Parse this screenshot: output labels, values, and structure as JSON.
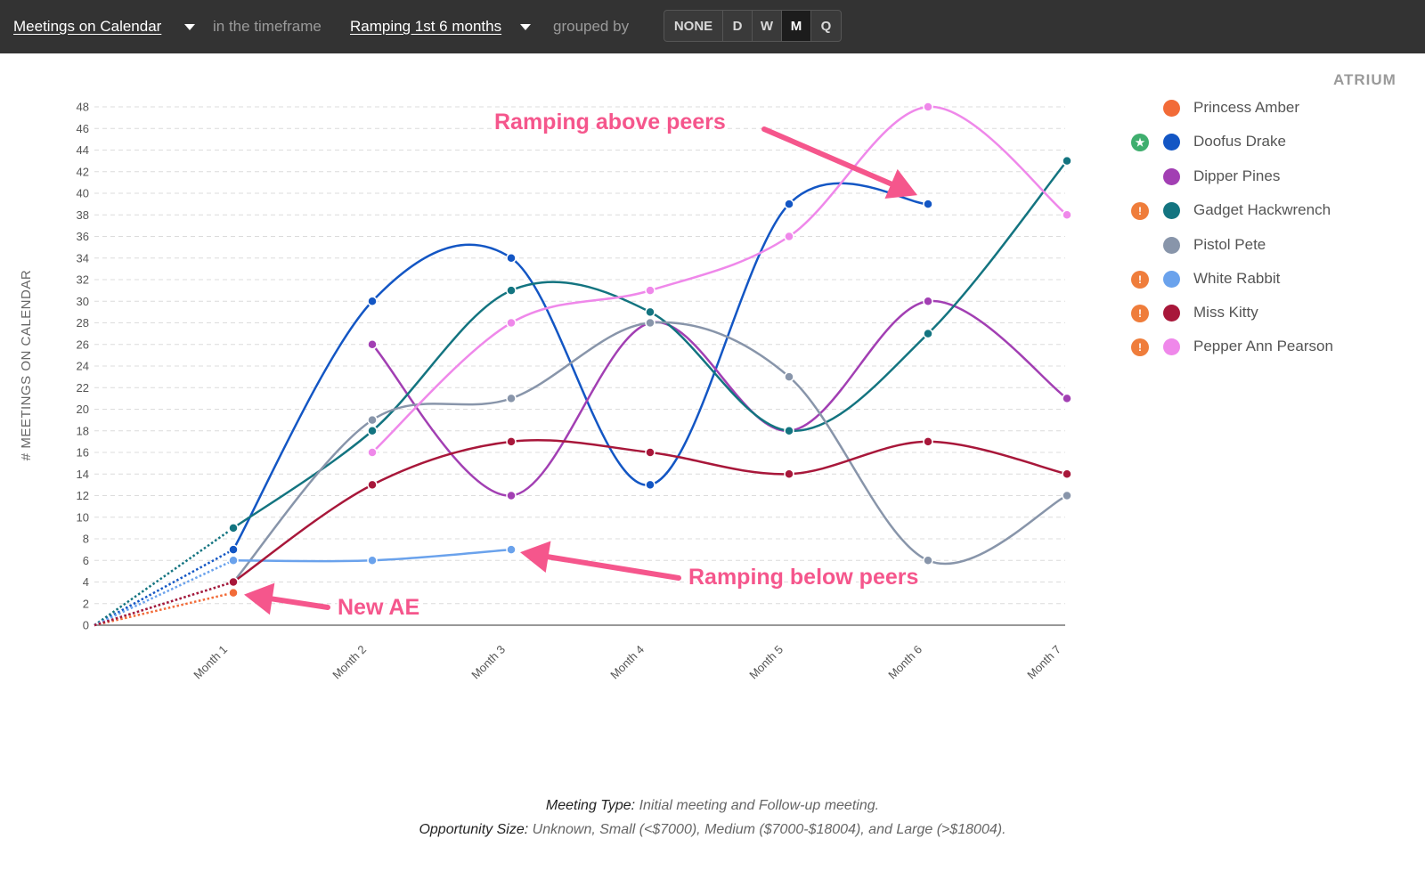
{
  "toolbar": {
    "metric": "Meetings on Calendar",
    "timeframe_text": "in the timeframe",
    "timeframe": "Ramping 1st 6 months",
    "grouped_text": "grouped by",
    "groups": [
      "NONE",
      "D",
      "W",
      "M",
      "Q"
    ],
    "active_group": "M"
  },
  "logo": "ATRIUM",
  "legend": [
    {
      "name": "Princess Amber",
      "color": "#f26b38",
      "badge": ""
    },
    {
      "name": "Doofus Drake",
      "color": "#1356c4",
      "badge": "star"
    },
    {
      "name": "Dipper Pines",
      "color": "#a23fb3",
      "badge": ""
    },
    {
      "name": "Gadget Hackwrench",
      "color": "#137480",
      "badge": "warning"
    },
    {
      "name": "Pistol Pete",
      "color": "#8895aa",
      "badge": ""
    },
    {
      "name": "White Rabbit",
      "color": "#6aa2ec",
      "badge": "warning"
    },
    {
      "name": "Miss Kitty",
      "color": "#a8173a",
      "badge": "warning"
    },
    {
      "name": "Pepper Ann Pearson",
      "color": "#ef88ea",
      "badge": "warning"
    }
  ],
  "badge_colors": {
    "star": "#3fae6e",
    "warning": "#ef7d3b"
  },
  "annotation_color": "#f5568c",
  "caption": {
    "meeting_type_key": "Meeting Type:",
    "meeting_type_value": "Initial meeting and Follow-up meeting.",
    "opp_size_key": "Opportunity Size:",
    "opp_size_value": "Unknown, Small (<$7000), Medium ($7000-$18004), and Large (>$18004)."
  },
  "chart_data": {
    "type": "line",
    "ylabel": "# MEETINGS ON CALENDAR",
    "xlabel": "",
    "ylim": [
      0,
      48
    ],
    "yticks": [
      0,
      2,
      4,
      6,
      8,
      10,
      12,
      14,
      16,
      18,
      20,
      22,
      24,
      26,
      28,
      30,
      32,
      34,
      36,
      38,
      40,
      42,
      44,
      46,
      48
    ],
    "categories": [
      "Month 1",
      "Month 2",
      "Month 3",
      "Month 4",
      "Month 5",
      "Month 6",
      "Month 7"
    ],
    "grid": true,
    "legend_position": "right",
    "origin_dashed": true,
    "series": [
      {
        "name": "Princess Amber",
        "values": [
          3,
          null,
          null,
          null,
          null,
          null,
          null
        ]
      },
      {
        "name": "Doofus Drake",
        "values": [
          7,
          30,
          34,
          13,
          39,
          39,
          null
        ]
      },
      {
        "name": "Dipper Pines",
        "values": [
          null,
          26,
          12,
          28,
          18,
          30,
          21
        ]
      },
      {
        "name": "Gadget Hackwrench",
        "values": [
          9,
          18,
          31,
          29,
          18,
          27,
          43
        ]
      },
      {
        "name": "Pistol Pete",
        "values": [
          4,
          19,
          21,
          28,
          23,
          6,
          12
        ]
      },
      {
        "name": "White Rabbit",
        "values": [
          6,
          6,
          7,
          null,
          null,
          null,
          null
        ]
      },
      {
        "name": "Miss Kitty",
        "values": [
          4,
          13,
          17,
          16,
          14,
          17,
          14
        ]
      },
      {
        "name": "Pepper Ann Pearson",
        "values": [
          null,
          16,
          28,
          31,
          36,
          48,
          38
        ]
      }
    ],
    "annotations": [
      {
        "text": "Ramping above peers",
        "target_series": "Doofus Drake",
        "target_category": "Month 6"
      },
      {
        "text": "Ramping below peers",
        "target_series": "White Rabbit",
        "target_category": "Month 3"
      },
      {
        "text": "New AE",
        "target_series": "Princess Amber",
        "target_category": "Month 1"
      }
    ]
  }
}
